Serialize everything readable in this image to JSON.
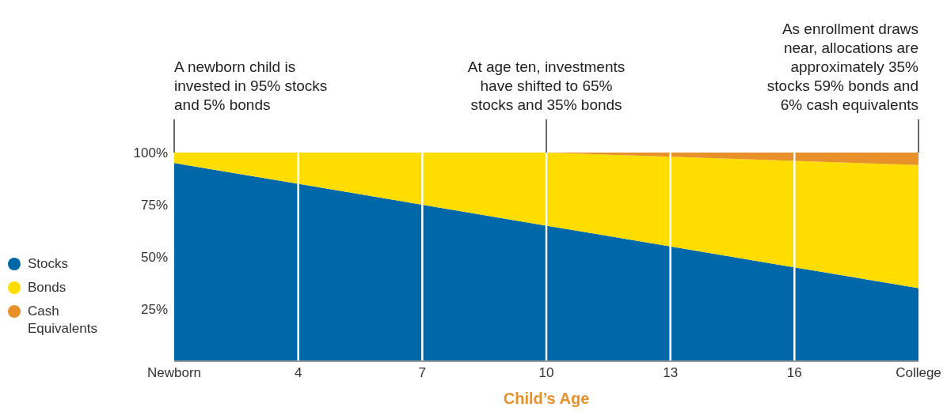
{
  "chart_data": {
    "type": "area",
    "stacked": true,
    "xlabel": "Child’s Age",
    "categories": [
      "Newborn",
      "4",
      "7",
      "10",
      "13",
      "16",
      "College"
    ],
    "series": [
      {
        "name": "Stocks",
        "color": "#0068a8",
        "values": [
          95,
          85,
          75,
          65,
          55,
          45,
          35
        ]
      },
      {
        "name": "Bonds",
        "color": "#ffdd00",
        "values": [
          5,
          15,
          25,
          35,
          43,
          51,
          59
        ]
      },
      {
        "name": "Cash Equivalents",
        "color": "#e8902a",
        "values": [
          0,
          0,
          0,
          0,
          2,
          4,
          6
        ]
      }
    ],
    "ylim": [
      0,
      100
    ],
    "yticks": [
      {
        "value": 25,
        "label": "25%"
      },
      {
        "value": 50,
        "label": "50%"
      },
      {
        "value": 75,
        "label": "75%"
      },
      {
        "value": 100,
        "label": "100%"
      }
    ],
    "grid": "x",
    "legend": "left",
    "annotations": [
      {
        "text": "A newborn child is invested in 95% stocks and 5% bonds",
        "x": "Newborn",
        "y": 100
      },
      {
        "text": "At age ten, investments have shifted to 65% stocks and 35% bonds",
        "x": "10",
        "y": 100
      },
      {
        "text": "As enrollment draws near, allocations are approximately 35% stocks 59% bonds and 6% cash equivalents",
        "x": "College",
        "y": 100
      }
    ]
  }
}
